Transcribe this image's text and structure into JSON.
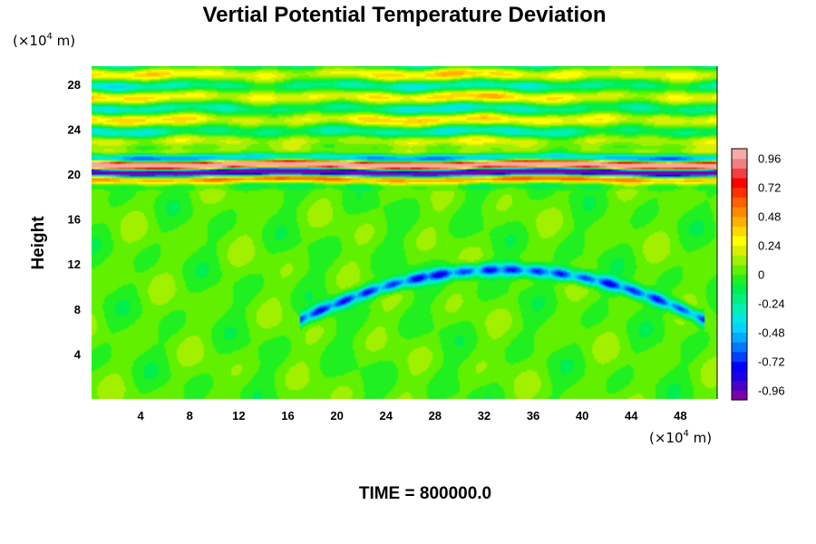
{
  "chart_data": {
    "type": "heatmap",
    "title": "Vertial Potential Temperature Deviation",
    "ylabel": "Height",
    "xlabel": "",
    "x_unit": {
      "prefix": "(×10",
      "exp": "4",
      "suffix": " m)"
    },
    "y_unit": {
      "prefix": "(×10",
      "exp": "4",
      "suffix": " m)"
    },
    "x_ticks": [
      "4",
      "8",
      "12",
      "16",
      "20",
      "24",
      "28",
      "32",
      "36",
      "40",
      "44",
      "48"
    ],
    "y_ticks": [
      "4",
      "8",
      "12",
      "16",
      "20",
      "24",
      "28"
    ],
    "xlim": [
      0,
      51
    ],
    "ylim": [
      0,
      29.6
    ],
    "colorbar": {
      "range": [
        -1.04,
        1.04
      ],
      "labels": [
        "0.96",
        "0.72",
        "0.48",
        "0.24",
        "0",
        "-0.24",
        "-0.48",
        "-0.72",
        "-0.96"
      ],
      "colors": [
        "#7b00a8",
        "#4b00c8",
        "#1a00e6",
        "#0000ff",
        "#0040ff",
        "#0078ff",
        "#00aaff",
        "#00d4ff",
        "#00e8e0",
        "#00f0b0",
        "#00f080",
        "#00ee50",
        "#20f020",
        "#60f000",
        "#a0f000",
        "#d8f000",
        "#ffff00",
        "#ffd800",
        "#ffb000",
        "#ff8800",
        "#ff6000",
        "#ff3000",
        "#ff0000",
        "#f04040",
        "#f08080",
        "#f8a8a8"
      ],
      "position": "right"
    },
    "features": {
      "background_value": 0.02,
      "strong_band": {
        "y_center": 20.5,
        "y_halfwidth": 0.6,
        "y_lower": 19.8,
        "y_upper": 21.3,
        "label": "alternating positive/negative layer"
      },
      "upper_waves": {
        "y_from": 22.0,
        "y_to": 29.6,
        "amplitude": 0.35
      },
      "lower_arc": {
        "x_from": 17,
        "x_to": 50,
        "y_bottom": 7,
        "y_top": 11.5,
        "min_value": -0.8
      }
    }
  },
  "footer": {
    "time_label": "TIME = 800000.0"
  }
}
